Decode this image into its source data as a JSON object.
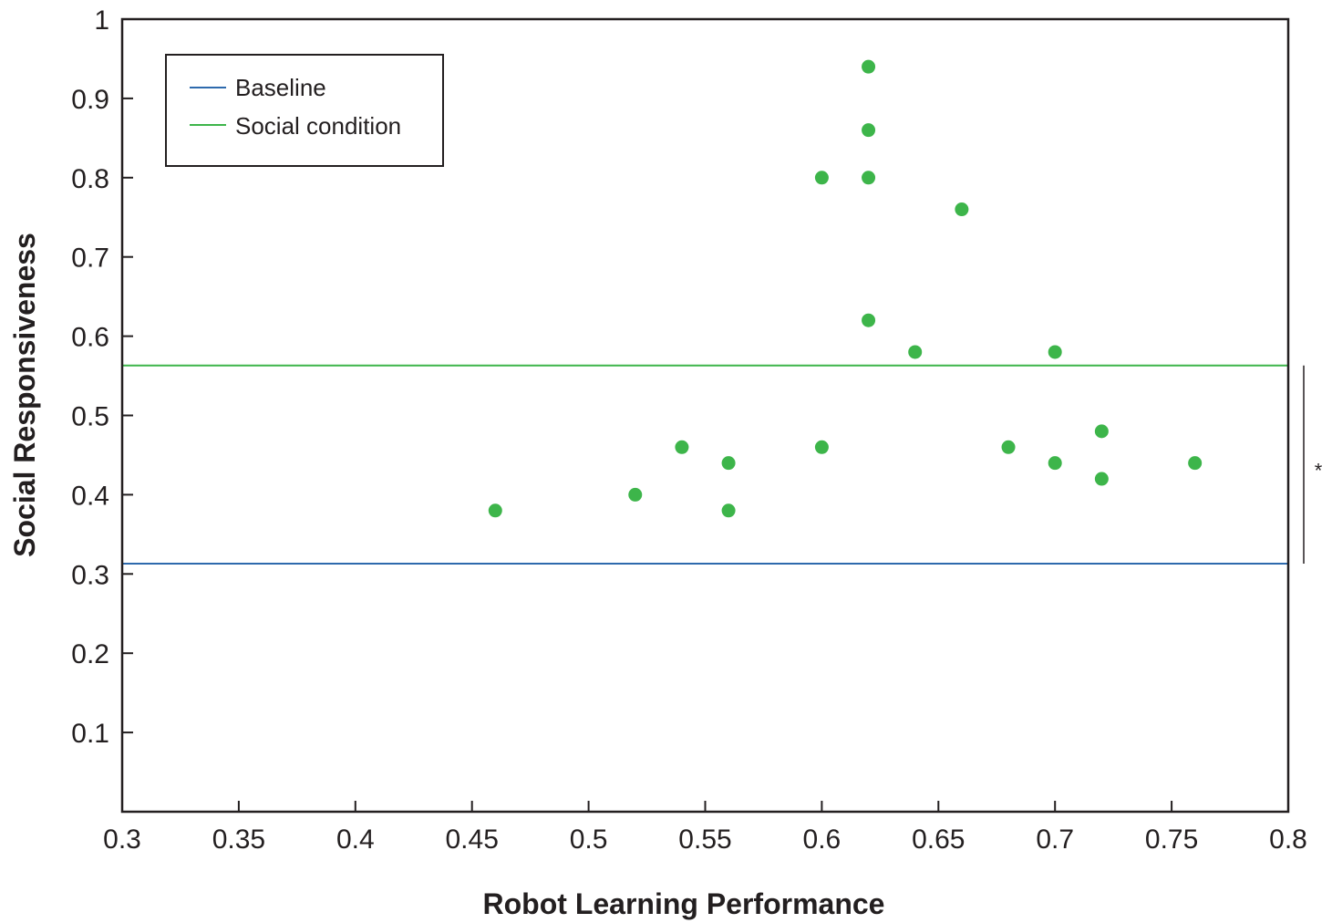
{
  "chart_data": {
    "type": "scatter",
    "xlabel": "Robot Learning Performance",
    "ylabel": "Social Responsiveness",
    "xlim": [
      0.3,
      0.8
    ],
    "ylim": [
      0,
      1
    ],
    "x_ticks": [
      "0.3",
      "0.35",
      "0.4",
      "0.45",
      "0.5",
      "0.55",
      "0.6",
      "0.65",
      "0.7",
      "0.75",
      "0.8"
    ],
    "y_ticks": [
      "0.1",
      "0.2",
      "0.3",
      "0.4",
      "0.5",
      "0.6",
      "0.7",
      "0.8",
      "0.9",
      "1"
    ],
    "grid": false,
    "legend_position": "top-left",
    "series": [
      {
        "name": "Social condition",
        "color": "#3db54a",
        "points": [
          [
            0.46,
            0.38
          ],
          [
            0.52,
            0.4
          ],
          [
            0.54,
            0.46
          ],
          [
            0.56,
            0.44
          ],
          [
            0.56,
            0.38
          ],
          [
            0.6,
            0.8
          ],
          [
            0.6,
            0.46
          ],
          [
            0.62,
            0.94
          ],
          [
            0.62,
            0.86
          ],
          [
            0.62,
            0.8
          ],
          [
            0.62,
            0.62
          ],
          [
            0.64,
            0.58
          ],
          [
            0.66,
            0.76
          ],
          [
            0.68,
            0.46
          ],
          [
            0.7,
            0.58
          ],
          [
            0.7,
            0.44
          ],
          [
            0.72,
            0.48
          ],
          [
            0.72,
            0.42
          ],
          [
            0.76,
            0.44
          ]
        ]
      }
    ],
    "reference_lines": [
      {
        "name": "Baseline",
        "y": 0.313,
        "color": "#2e6aad"
      },
      {
        "name": "Social condition",
        "y": 0.563,
        "color": "#3db54a"
      }
    ],
    "significance": {
      "from": 0.313,
      "to": 0.563,
      "label": "*"
    }
  }
}
